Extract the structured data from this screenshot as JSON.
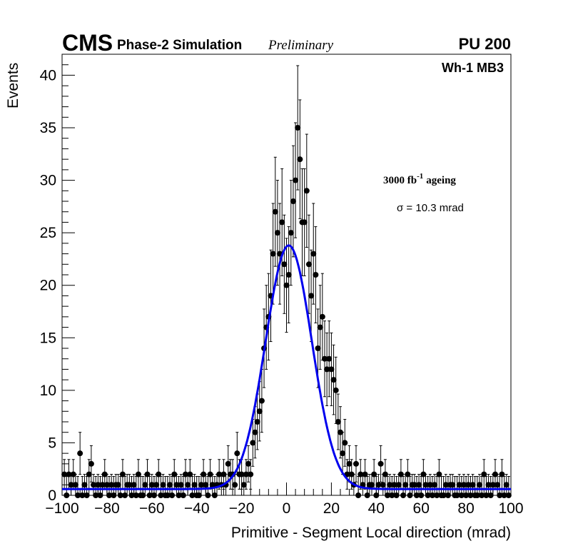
{
  "header": {
    "experiment": "CMS",
    "simulation": "Phase-2 Simulation",
    "status": "Preliminary",
    "pileup": "PU 200",
    "chamber": "Wh-1 MB3"
  },
  "annotations": {
    "ageing_prefix": "3000 fb",
    "ageing_exponent": "-1",
    "ageing_suffix": "ageing",
    "sigma_label": "σ = 10.3 mrad"
  },
  "colors": {
    "fit": "#0000ee",
    "markers": "#000000",
    "frame": "#000000"
  },
  "chart_data": {
    "type": "scatter",
    "title": "",
    "xlabel": "Primitive - Segment Local direction (mrad)",
    "ylabel": "Events",
    "xlim": [
      -100,
      100
    ],
    "ylim": [
      0,
      42
    ],
    "xticks": [
      -100,
      -80,
      -60,
      -40,
      -20,
      0,
      20,
      40,
      60,
      80,
      100
    ],
    "xtick_labels": [
      "−100",
      "−80",
      "−60",
      "−40",
      "−20",
      "0",
      "20",
      "40",
      "60",
      "80",
      "100"
    ],
    "yticks": [
      0,
      5,
      10,
      15,
      20,
      25,
      30,
      35,
      40
    ],
    "ytick_labels": [
      "0",
      "5",
      "10",
      "15",
      "20",
      "25",
      "30",
      "35",
      "40"
    ],
    "error_bars": "poisson (sqrt N)",
    "series": [
      {
        "name": "Simulation",
        "style": "markers",
        "x": [
          -99,
          -98,
          -97,
          -96,
          -95,
          -94,
          -93,
          -92,
          -91,
          -90,
          -89,
          -88,
          -87,
          -86,
          -85,
          -84,
          -83,
          -82,
          -81,
          -80,
          -79,
          -78,
          -77,
          -76,
          -75,
          -74,
          -73,
          -72,
          -71,
          -70,
          -69,
          -68,
          -67,
          -66,
          -65,
          -64,
          -63,
          -62,
          -61,
          -60,
          -59,
          -58,
          -57,
          -56,
          -55,
          -54,
          -53,
          -52,
          -51,
          -50,
          -49,
          -48,
          -47,
          -46,
          -45,
          -44,
          -43,
          -42,
          -41,
          -40,
          -39,
          -38,
          -37,
          -36,
          -35,
          -34,
          -33,
          -32,
          -31,
          -30,
          -29,
          -28,
          -27,
          -26,
          -25,
          -24,
          -23,
          -22,
          -21,
          -20,
          -19,
          -18,
          -17,
          -16,
          -15,
          -14,
          -13,
          -12,
          -11,
          -10,
          -9,
          -8,
          -7,
          -6,
          -5,
          -4,
          -3,
          -2,
          -1,
          0,
          1,
          2,
          3,
          4,
          5,
          6,
          7,
          8,
          9,
          10,
          11,
          12,
          13,
          14,
          15,
          16,
          17,
          18,
          19,
          20,
          21,
          22,
          23,
          24,
          25,
          26,
          27,
          28,
          29,
          30,
          31,
          32,
          33,
          34,
          35,
          36,
          37,
          38,
          39,
          40,
          41,
          42,
          43,
          44,
          45,
          46,
          47,
          48,
          49,
          50,
          51,
          52,
          53,
          54,
          55,
          56,
          57,
          58,
          59,
          60,
          61,
          62,
          63,
          64,
          65,
          66,
          67,
          68,
          69,
          70,
          71,
          72,
          73,
          74,
          75,
          76,
          77,
          78,
          79,
          80,
          81,
          82,
          83,
          84,
          85,
          86,
          87,
          88,
          89,
          90,
          91,
          92,
          93,
          94,
          95,
          96,
          97,
          98,
          99
        ],
        "y": [
          2,
          0,
          2,
          1,
          2,
          1,
          0,
          4,
          0,
          1,
          0,
          2,
          3,
          1,
          0,
          1,
          0,
          1,
          2,
          1,
          0,
          1,
          0,
          1,
          1,
          0,
          2,
          0,
          1,
          1,
          0,
          1,
          0,
          2,
          0,
          0,
          1,
          2,
          0,
          1,
          0,
          1,
          2,
          0,
          1,
          0,
          0,
          1,
          0,
          2,
          1,
          0,
          1,
          0,
          2,
          1,
          2,
          0,
          1,
          0,
          0,
          1,
          2,
          1,
          0,
          2,
          1,
          0,
          1,
          2,
          1,
          2,
          1,
          3,
          2,
          2,
          1,
          4,
          2,
          2,
          1,
          2,
          3,
          2,
          5,
          6,
          7,
          8,
          9,
          14,
          16,
          17,
          19,
          23,
          27,
          25,
          23,
          26,
          22,
          20,
          21,
          25,
          28,
          30,
          35,
          32,
          26,
          26,
          29,
          22,
          19,
          23,
          21,
          14,
          16,
          17,
          13,
          12,
          13,
          12,
          11,
          10,
          7,
          6,
          4,
          5,
          2,
          3,
          2,
          1,
          3,
          0,
          2,
          1,
          2,
          0,
          1,
          1,
          2,
          0,
          1,
          3,
          1,
          2,
          0,
          1,
          0,
          1,
          0,
          1,
          2,
          0,
          1,
          2,
          0,
          1,
          1,
          0,
          1,
          0,
          2,
          1,
          0,
          1,
          0,
          1,
          0,
          2,
          0,
          0,
          1,
          0,
          1,
          1,
          0,
          0,
          1,
          0,
          1,
          0,
          1,
          0,
          1,
          0,
          0,
          1,
          0,
          2,
          0,
          1,
          0,
          1,
          2,
          1,
          0,
          2,
          0,
          1,
          0
        ]
      },
      {
        "name": "Gaussian fit",
        "style": "line",
        "model": "gaussian + constant",
        "amplitude": 23.2,
        "mean": 1.0,
        "sigma": 10.3,
        "constant": 0.6
      }
    ]
  }
}
